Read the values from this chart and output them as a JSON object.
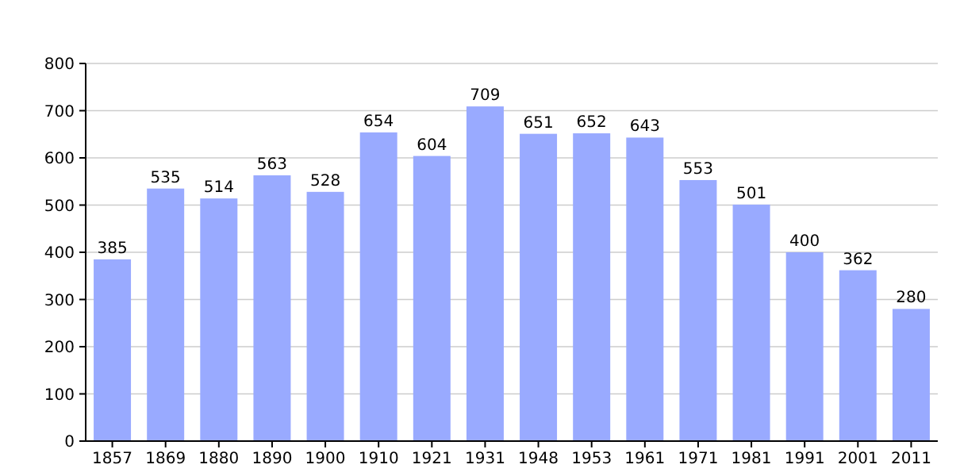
{
  "chart_data": {
    "type": "bar",
    "categories": [
      "1857",
      "1869",
      "1880",
      "1890",
      "1900",
      "1910",
      "1921",
      "1931",
      "1948",
      "1953",
      "1961",
      "1971",
      "1981",
      "1991",
      "2001",
      "2011"
    ],
    "values": [
      385,
      535,
      514,
      563,
      528,
      654,
      604,
      709,
      651,
      652,
      643,
      553,
      501,
      400,
      362,
      280
    ],
    "color": "#99aaff",
    "ylim": [
      0,
      800
    ],
    "yticks": [
      0,
      100,
      200,
      300,
      400,
      500,
      600,
      700,
      800
    ],
    "grid": "y",
    "data_labels": true
  }
}
